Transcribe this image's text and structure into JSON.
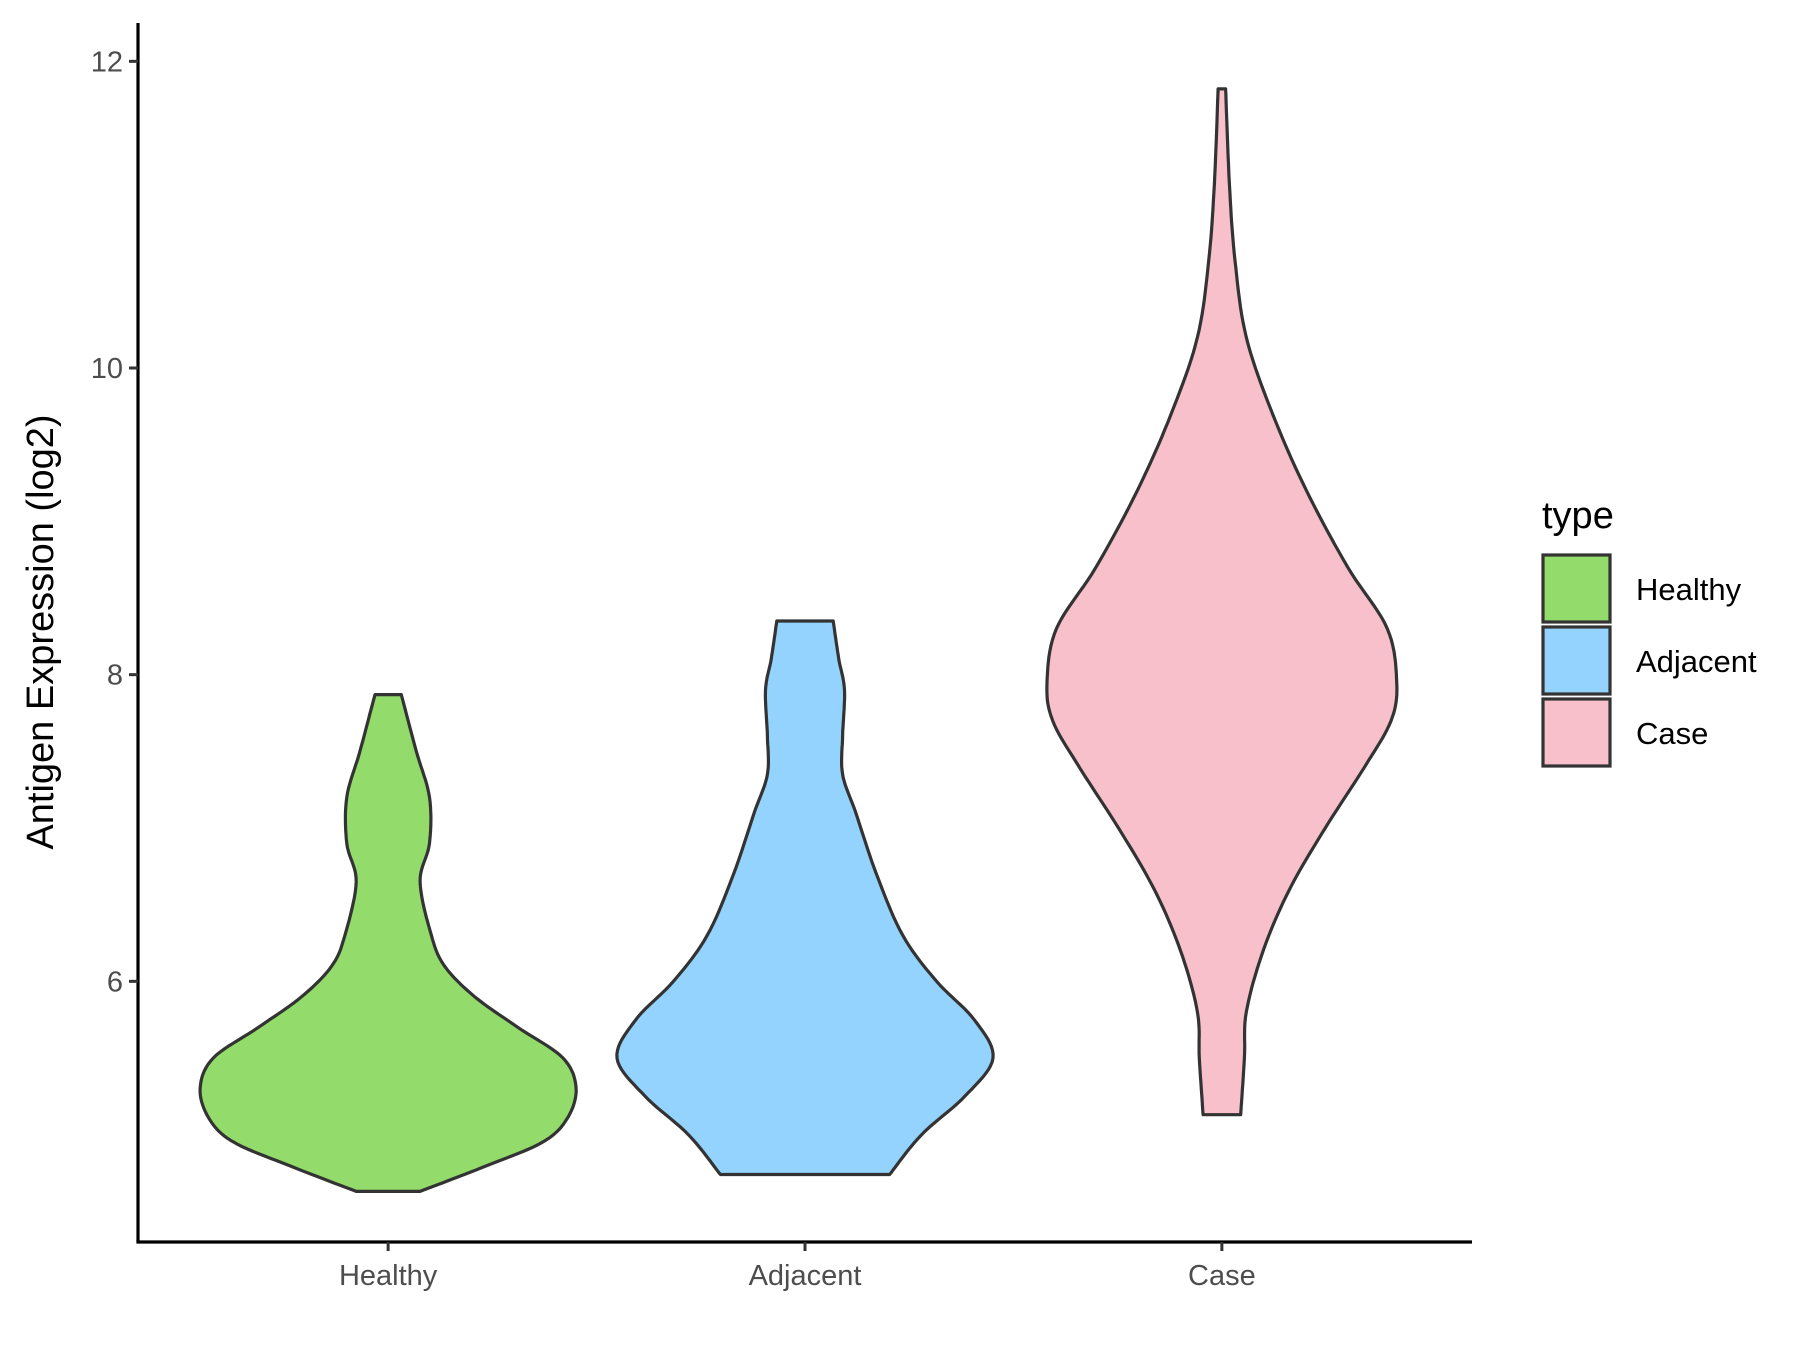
{
  "chart_data": {
    "type": "violin",
    "title": "",
    "xlabel": "",
    "ylabel": "Antigen Expression (log2)",
    "ylim": [
      4.3,
      12.25
    ],
    "y_ticks": [
      6,
      8,
      10,
      12
    ],
    "categories": [
      "Healthy",
      "Adjacent",
      "Case"
    ],
    "grid": false,
    "legend": {
      "title": "type",
      "placement": "right",
      "entries": [
        "Healthy",
        "Adjacent",
        "Case"
      ]
    },
    "series": [
      {
        "name": "Healthy",
        "color": "#93db6a",
        "profile": [
          [
            4.63,
            0.17
          ],
          [
            4.8,
            0.53
          ],
          [
            4.95,
            0.82
          ],
          [
            5.1,
            0.95
          ],
          [
            5.3,
            1.0
          ],
          [
            5.5,
            0.93
          ],
          [
            5.7,
            0.69
          ],
          [
            5.9,
            0.46
          ],
          [
            6.1,
            0.3
          ],
          [
            6.3,
            0.23
          ],
          [
            6.65,
            0.17
          ],
          [
            6.9,
            0.22
          ],
          [
            7.2,
            0.22
          ],
          [
            7.5,
            0.15
          ],
          [
            7.87,
            0.07
          ]
        ]
      },
      {
        "name": "Adjacent",
        "color": "#94d3fd",
        "profile": [
          [
            4.74,
            0.45
          ],
          [
            5.0,
            0.62
          ],
          [
            5.25,
            0.85
          ],
          [
            5.5,
            1.0
          ],
          [
            5.75,
            0.9
          ],
          [
            6.0,
            0.7
          ],
          [
            6.3,
            0.52
          ],
          [
            6.7,
            0.38
          ],
          [
            7.1,
            0.27
          ],
          [
            7.35,
            0.2
          ],
          [
            7.6,
            0.2
          ],
          [
            7.9,
            0.21
          ],
          [
            8.1,
            0.18
          ],
          [
            8.35,
            0.15
          ]
        ]
      },
      {
        "name": "Case",
        "color": "#f7c0cb",
        "profile": [
          [
            5.13,
            0.1
          ],
          [
            5.5,
            0.12
          ],
          [
            5.8,
            0.13
          ],
          [
            6.2,
            0.22
          ],
          [
            6.6,
            0.36
          ],
          [
            7.0,
            0.55
          ],
          [
            7.4,
            0.76
          ],
          [
            7.7,
            0.9
          ],
          [
            7.95,
            0.93
          ],
          [
            8.3,
            0.88
          ],
          [
            8.7,
            0.67
          ],
          [
            9.2,
            0.45
          ],
          [
            9.7,
            0.27
          ],
          [
            10.2,
            0.13
          ],
          [
            10.7,
            0.07
          ],
          [
            11.2,
            0.04
          ],
          [
            11.82,
            0.02
          ]
        ]
      }
    ]
  }
}
